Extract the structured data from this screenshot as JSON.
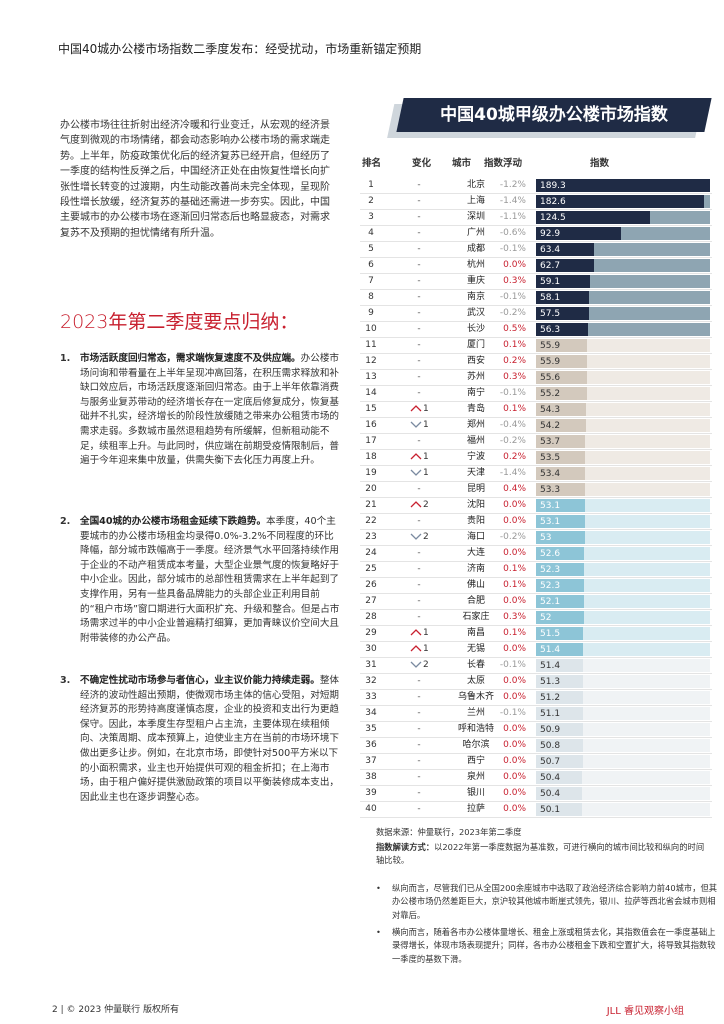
{
  "header": {
    "title": "中国40城办公楼市场指数二季度发布：经受扰动，市场重新锚定预期"
  },
  "intro": "办公楼市场往往折射出经济冷暖和行业变迁，从宏观的经济景气度到微观的市场情绪，都会动态影响办公楼市场的需求端走势。上半年，防疫政策优化后的经济复苏已经开启，但经历了一季度的结构性反弹之后，中国经济正处在由恢复性增长向扩张性增长转变的过渡期，内生动能改善尚未完全体现，呈现阶段性增长放缓，经济复苏的基础还需进一步夯实。因此，中国主要城市的办公楼市场在逐渐回归常态后也略显疲态，对需求复苏不及预期的担忧情绪有所升温。",
  "summary": {
    "heading": "2023年第二季度要点归纳：",
    "items": [
      {
        "num": "1.",
        "title": "市场活跃度回归常态，需求端恢复速度不及供应端。",
        "body": "办公楼市场问询和带看量在上半年呈现冲高回落，在积压需求释放和补缺口效应后，市场活跃度逐渐回归常态。由于上半年依靠消费与服务业复苏带动的经济增长存在一定底后修复成分，恢复基础并不扎实，经济增长的阶段性放缓随之带来办公租赁市场的需求走弱。多数城市虽然退租趋势有所缓解，但新租动能不足，续租率上升。与此同时，供应端在前期受疫情限制后，普遍于今年迎来集中放量，供需失衡下去化压力再度上升。"
      },
      {
        "num": "2.",
        "title": "全国40城的办公楼市场租金延续下跌趋势。",
        "body": "本季度，40个主要城市的办公楼市场租金均录得0.0%-3.2%不同程度的环比降幅，部分城市跌幅高于一季度。经济景气水平回落持续作用于企业的不动产租赁成本考量，大型企业景气度的恢复略好于中小企业。因此，部分城市的总部性租赁需求在上半年起到了支撑作用，另有一些具备品牌能力的头部企业正利用目前的“租户市场”窗口期进行大面积扩充、升级和整合。但是占市场需求过半的中小企业普遍精打细算，更加青睐议价空间大且附带装修的办公产品。"
      },
      {
        "num": "3.",
        "title": "不确定性扰动市场参与者信心，业主议价能力持续走弱。",
        "body": "整体经济的波动性超出预期，使微观市场主体的信心受阻，对短期经济复苏的形势持高度谨慎态度，企业的投资和支出行为更趋保守。因此，本季度生存型租户占主流，主要体现在续租倾向、决策周期、成本预算上，迫使业主方在当前的市场环境下做出更多让步。例如，在北京市场，即使针对500平方米以下的小面积需求，业主也开始提供可观的租金折扣；在上海市场，由于租户偏好提供激励政策的项目以平衡装修成本支出，因此业主也在逐步调整心态。"
      }
    ]
  },
  "table": {
    "title": "中国40城甲级办公楼市场指数",
    "columns": [
      "排名",
      "变化",
      "城市",
      "指数浮动",
      "指数"
    ],
    "group_colors": [
      {
        "bar": "#1f2b45",
        "track": "#8ea5b2",
        "text": "#ffffff"
      },
      {
        "bar": "#d3c9bd",
        "track": "#efeae4",
        "text": "#333333"
      },
      {
        "bar": "#8dc5d7",
        "track": "#d9ecf2",
        "text": "#ffffff"
      },
      {
        "bar": "#dde5ea",
        "track": "#f0f3f5",
        "text": "#333333"
      }
    ],
    "rows": [
      {
        "rank": 1,
        "change": "-",
        "city": "北京",
        "float": "-1.2%",
        "index": 189.3
      },
      {
        "rank": 2,
        "change": "-",
        "city": "上海",
        "float": "-1.4%",
        "index": 182.6
      },
      {
        "rank": 3,
        "change": "-",
        "city": "深圳",
        "float": "-1.1%",
        "index": 124.5
      },
      {
        "rank": 4,
        "change": "-",
        "city": "广州",
        "float": "-0.6%",
        "index": 92.9
      },
      {
        "rank": 5,
        "change": "-",
        "city": "成都",
        "float": "-0.1%",
        "index": 63.4
      },
      {
        "rank": 6,
        "change": "-",
        "city": "杭州",
        "float": "0.0%",
        "index": 62.7
      },
      {
        "rank": 7,
        "change": "-",
        "city": "重庆",
        "float": "0.3%",
        "index": 59.1
      },
      {
        "rank": 8,
        "change": "-",
        "city": "南京",
        "float": "-0.1%",
        "index": 58.1
      },
      {
        "rank": 9,
        "change": "-",
        "city": "武汉",
        "float": "-0.2%",
        "index": 57.5
      },
      {
        "rank": 10,
        "change": "-",
        "city": "长沙",
        "float": "0.5%",
        "index": 56.3
      },
      {
        "rank": 11,
        "change": "-",
        "city": "厦门",
        "float": "0.1%",
        "index": 55.9
      },
      {
        "rank": 12,
        "change": "-",
        "city": "西安",
        "float": "0.2%",
        "index": 55.9
      },
      {
        "rank": 13,
        "change": "-",
        "city": "苏州",
        "float": "0.3%",
        "index": 55.6
      },
      {
        "rank": 14,
        "change": "-",
        "city": "南宁",
        "float": "-0.1%",
        "index": 55.2
      },
      {
        "rank": 15,
        "change": 1,
        "trend": "up",
        "city": "青岛",
        "float": "0.1%",
        "index": 54.3
      },
      {
        "rank": 16,
        "change": 1,
        "trend": "down",
        "city": "郑州",
        "float": "-0.4%",
        "index": 54.2
      },
      {
        "rank": 17,
        "change": "-",
        "city": "福州",
        "float": "-0.2%",
        "index": 53.7
      },
      {
        "rank": 18,
        "change": 1,
        "trend": "up",
        "city": "宁波",
        "float": "0.2%",
        "index": 53.5
      },
      {
        "rank": 19,
        "change": 1,
        "trend": "down",
        "city": "天津",
        "float": "-1.4%",
        "index": 53.4
      },
      {
        "rank": 20,
        "change": "-",
        "city": "昆明",
        "float": "0.4%",
        "index": 53.3
      },
      {
        "rank": 21,
        "change": 2,
        "trend": "up",
        "city": "沈阳",
        "float": "0.0%",
        "index": 53.1
      },
      {
        "rank": 22,
        "change": "-",
        "city": "贵阳",
        "float": "0.0%",
        "index": 53.1
      },
      {
        "rank": 23,
        "change": 2,
        "trend": "down",
        "city": "海口",
        "float": "-0.2%",
        "index": 53.0
      },
      {
        "rank": 24,
        "change": "-",
        "city": "大连",
        "float": "0.0%",
        "index": 52.6
      },
      {
        "rank": 25,
        "change": "-",
        "city": "济南",
        "float": "0.1%",
        "index": 52.3
      },
      {
        "rank": 26,
        "change": "-",
        "city": "佛山",
        "float": "0.1%",
        "index": 52.3
      },
      {
        "rank": 27,
        "change": "-",
        "city": "合肥",
        "float": "0.0%",
        "index": 52.1
      },
      {
        "rank": 28,
        "change": "-",
        "city": "石家庄",
        "float": "0.3%",
        "index": 52.0
      },
      {
        "rank": 29,
        "change": 1,
        "trend": "up",
        "city": "南昌",
        "float": "0.1%",
        "index": 51.5
      },
      {
        "rank": 30,
        "change": 1,
        "trend": "up",
        "city": "无锡",
        "float": "0.0%",
        "index": 51.4
      },
      {
        "rank": 31,
        "change": 2,
        "trend": "down",
        "city": "长春",
        "float": "-0.1%",
        "index": 51.4
      },
      {
        "rank": 32,
        "change": "-",
        "city": "太原",
        "float": "0.0%",
        "index": 51.3
      },
      {
        "rank": 33,
        "change": "-",
        "city": "乌鲁木齐",
        "float": "0.0%",
        "index": 51.2
      },
      {
        "rank": 34,
        "change": "-",
        "city": "兰州",
        "float": "-0.1%",
        "index": 51.1
      },
      {
        "rank": 35,
        "change": "-",
        "city": "呼和浩特",
        "float": "0.0%",
        "index": 50.9
      },
      {
        "rank": 36,
        "change": "-",
        "city": "哈尔滨",
        "float": "0.0%",
        "index": 50.8
      },
      {
        "rank": 37,
        "change": "-",
        "city": "西宁",
        "float": "0.0%",
        "index": 50.7
      },
      {
        "rank": 38,
        "change": "-",
        "city": "泉州",
        "float": "0.0%",
        "index": 50.4
      },
      {
        "rank": 39,
        "change": "-",
        "city": "银川",
        "float": "0.0%",
        "index": 50.4
      },
      {
        "rank": 40,
        "change": "-",
        "city": "拉萨",
        "float": "0.0%",
        "index": 50.1
      }
    ]
  },
  "notes": {
    "source": "数据来源：仲量联行，2023年第二季度",
    "reading_label": "指数解读方式：",
    "reading": "以2022年第一季度数据为基准数，可进行横向的城市间比较和纵向的时间轴比较。",
    "bullets": [
      "纵向而言，尽管我们已从全国200余座城市中选取了政治经济综合影响力前40城市，但其办公楼市场仍然差距巨大，京沪较其他城市断崖式领先，银川、拉萨等西北省会城市则相对靠后。",
      "横向而言，随着各市办公楼体量增长、租金上涨或租赁去化，其指数值会在一季度基础上录得增长，体现市场表现提升；同样，各市办公楼租金下跌和空置扩大，将导致其指数较一季度的基数下滑。"
    ]
  },
  "footer": {
    "page": "2 | © 2023 仲量联行 版权所有",
    "brand": "JLL 睿见观察小组"
  }
}
